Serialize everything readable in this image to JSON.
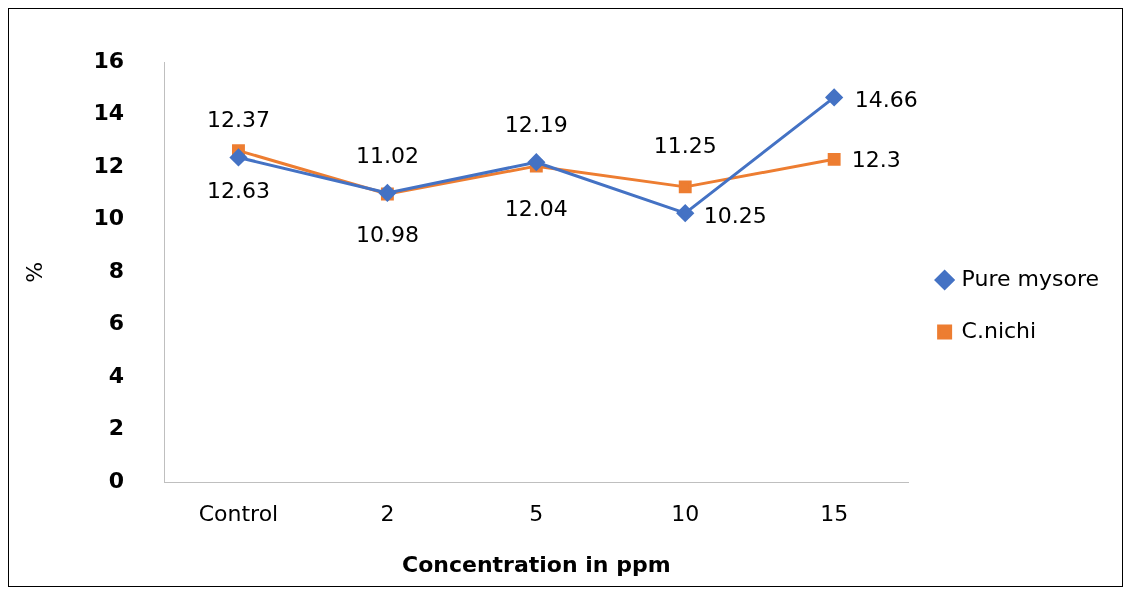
{
  "chart_data": {
    "type": "line",
    "xlabel": "Concentration in ppm",
    "ylabel": "%",
    "categories": [
      "Control",
      "2",
      "5",
      "10",
      "15"
    ],
    "series": [
      {
        "name": "Pure mysore",
        "color": "#4472c4",
        "marker": "diamond",
        "values": [
          12.37,
          11.02,
          12.19,
          10.25,
          14.66
        ]
      },
      {
        "name": "C.nichi",
        "color": "#ed7d31",
        "marker": "square",
        "values": [
          12.63,
          10.98,
          12.04,
          11.25,
          12.3
        ]
      }
    ],
    "ylim": [
      0,
      16
    ],
    "yticks": [
      0,
      2,
      4,
      6,
      8,
      10,
      12,
      14,
      16
    ],
    "grid": false,
    "legend": "right",
    "data_labels": true
  }
}
